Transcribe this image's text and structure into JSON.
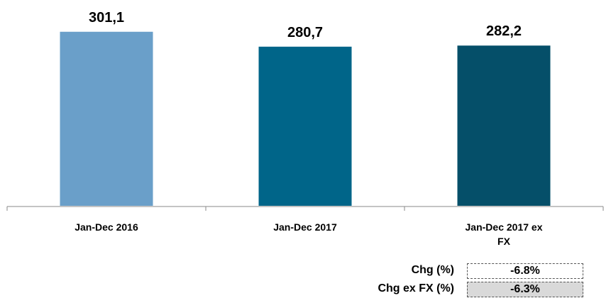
{
  "chart_data": {
    "type": "bar",
    "categories": [
      "Jan-Dec 2016",
      "Jan-Dec 2017",
      "Jan-Dec 2017 ex FX"
    ],
    "values": [
      301.1,
      280.7,
      282.2
    ],
    "value_labels": [
      "301,1",
      "280,7",
      "282,2"
    ],
    "colors": [
      "#6a9fc9",
      "#006589",
      "#054f69"
    ],
    "ylim": [
      63,
      330
    ]
  },
  "changes": [
    {
      "label": "Chg (%)",
      "value": "-6.8%"
    },
    {
      "label": "Chg ex FX (%)",
      "value": "-6.3%"
    }
  ]
}
